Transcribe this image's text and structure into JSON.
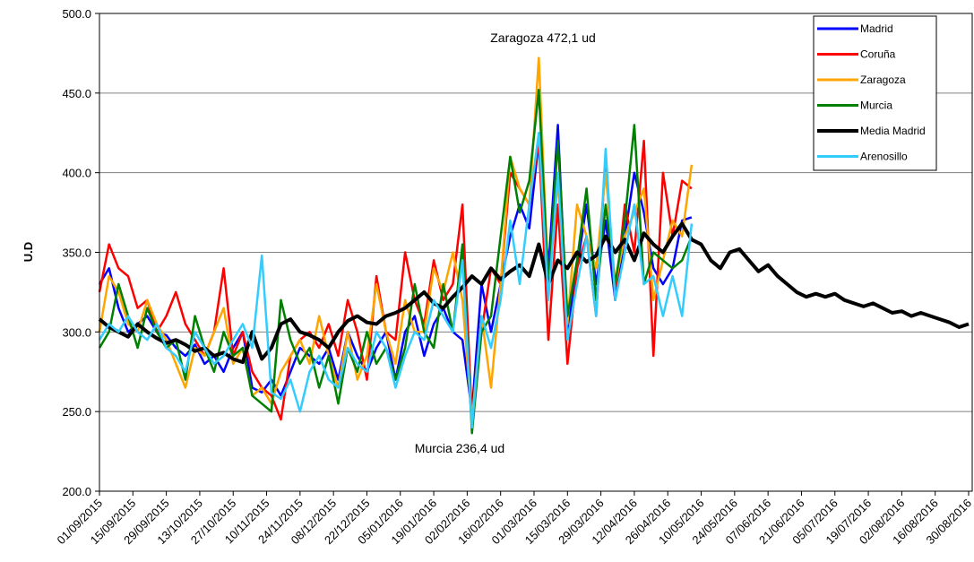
{
  "chart_data": {
    "type": "line",
    "ylabel": "U.D",
    "grid": true,
    "legend": "upper right",
    "annotations": [
      "Zaragoza 472,1 ud",
      "Murcia 236,4 ud"
    ],
    "x": [
      "01/09/2015",
      "05/09/2015",
      "09/09/2015",
      "13/09/2015",
      "17/09/2015",
      "21/09/2015",
      "25/09/2015",
      "29/09/2015",
      "03/10/2015",
      "07/10/2015",
      "11/10/2015",
      "15/10/2015",
      "19/10/2015",
      "23/10/2015",
      "27/10/2015",
      "31/10/2015",
      "04/11/2015",
      "08/11/2015",
      "12/11/2015",
      "16/11/2015",
      "20/11/2015",
      "24/11/2015",
      "28/11/2015",
      "02/12/2015",
      "06/12/2015",
      "10/12/2015",
      "14/12/2015",
      "18/12/2015",
      "22/12/2015",
      "26/12/2015",
      "30/12/2015",
      "03/01/2016",
      "07/01/2016",
      "11/01/2016",
      "15/01/2016",
      "19/01/2016",
      "23/01/2016",
      "27/01/2016",
      "31/01/2016",
      "04/02/2016",
      "08/02/2016",
      "12/02/2016",
      "16/02/2016",
      "20/02/2016",
      "24/02/2016",
      "28/02/2016",
      "03/03/2016",
      "07/03/2016",
      "11/03/2016",
      "15/03/2016",
      "19/03/2016",
      "23/03/2016",
      "27/03/2016",
      "31/03/2016",
      "04/04/2016",
      "08/04/2016",
      "12/04/2016",
      "16/04/2016",
      "20/04/2016",
      "24/04/2016",
      "28/04/2016",
      "02/05/2016",
      "06/05/2016",
      "10/05/2016",
      "14/05/2016",
      "18/05/2016",
      "22/05/2016",
      "26/05/2016",
      "30/05/2016",
      "03/06/2016",
      "07/06/2016",
      "11/06/2016",
      "15/06/2016",
      "19/06/2016",
      "23/06/2016",
      "27/06/2016",
      "01/07/2016",
      "05/07/2016",
      "09/07/2016",
      "13/07/2016",
      "17/07/2016",
      "21/07/2016",
      "25/07/2016",
      "29/07/2016",
      "02/08/2016",
      "06/08/2016",
      "10/08/2016",
      "14/08/2016",
      "18/08/2016",
      "22/08/2016",
      "26/08/2016",
      "30/08/2016"
    ],
    "xlim": [
      "01/09/2015",
      "30/08/2016"
    ],
    "xticks": [
      "01/09/2015",
      "15/09/2015",
      "29/09/2015",
      "13/10/2015",
      "27/10/2015",
      "10/11/2015",
      "24/11/2015",
      "08/12/2015",
      "22/12/2015",
      "05/01/2016",
      "19/01/2016",
      "02/02/2016",
      "16/02/2016",
      "01/03/2016",
      "15/03/2016",
      "29/03/2016",
      "12/04/2016",
      "26/04/2016",
      "10/05/2016",
      "24/05/2016",
      "07/06/2016",
      "21/06/2016",
      "05/07/2016",
      "19/07/2016",
      "02/08/2016",
      "16/08/2016",
      "30/08/2016"
    ],
    "ylim": [
      200,
      500
    ],
    "yticks": [
      {
        "value": 200,
        "label": "200.0"
      },
      {
        "value": 250,
        "label": "250.0"
      },
      {
        "value": 300,
        "label": "300.0"
      },
      {
        "value": 350,
        "label": "350.0"
      },
      {
        "value": 400,
        "label": "400.0"
      },
      {
        "value": 450,
        "label": "450.0"
      },
      {
        "value": 500,
        "label": "500.0"
      }
    ],
    "series": [
      {
        "name": "Madrid",
        "color": "#0000ff",
        "values": [
          330,
          340,
          315,
          300,
          305,
          310,
          300,
          298,
          290,
          285,
          292,
          280,
          285,
          275,
          290,
          300,
          265,
          262,
          270,
          260,
          275,
          290,
          285,
          280,
          290,
          270,
          300,
          285,
          275,
          290,
          300,
          270,
          300,
          310,
          285,
          305,
          315,
          300,
          295,
          250,
          330,
          300,
          330,
          360,
          380,
          365,
          420,
          340,
          430,
          300,
          340,
          380,
          330,
          370,
          320,
          360,
          400,
          375,
          340,
          330,
          340,
          370,
          372,
          null,
          null,
          null,
          null,
          null,
          null,
          null,
          null,
          null,
          null,
          null,
          null,
          null,
          null,
          null,
          null,
          null,
          null,
          null,
          null,
          null,
          null,
          null,
          null,
          null,
          null,
          null,
          null,
          null
        ]
      },
      {
        "name": "Coruña",
        "color": "#ff0000",
        "values": [
          325,
          355,
          340,
          335,
          315,
          320,
          300,
          310,
          325,
          305,
          295,
          285,
          300,
          340,
          285,
          300,
          275,
          265,
          260,
          245,
          285,
          295,
          300,
          290,
          305,
          285,
          320,
          300,
          270,
          335,
          300,
          295,
          350,
          320,
          305,
          345,
          320,
          330,
          380,
          245,
          300,
          340,
          330,
          400,
          390,
          380,
          420,
          295,
          380,
          280,
          340,
          360,
          310,
          410,
          320,
          380,
          350,
          420,
          285,
          400,
          360,
          395,
          390,
          null,
          null,
          null,
          null,
          null,
          null,
          null,
          null,
          null,
          null,
          null,
          null,
          null,
          null,
          null,
          null,
          null,
          null,
          null,
          null,
          null,
          null,
          null,
          null,
          null,
          null,
          null,
          null,
          null
        ]
      },
      {
        "name": "Zaragoza",
        "color": "#ffa500",
        "values": [
          300,
          335,
          325,
          305,
          300,
          320,
          305,
          295,
          280,
          265,
          290,
          285,
          300,
          315,
          280,
          290,
          260,
          265,
          255,
          275,
          285,
          295,
          280,
          310,
          285,
          265,
          300,
          270,
          285,
          330,
          300,
          280,
          320,
          300,
          300,
          340,
          325,
          350,
          320,
          245,
          310,
          265,
          330,
          410,
          390,
          380,
          472.1,
          330,
          395,
          305,
          380,
          360,
          340,
          400,
          330,
          360,
          375,
          390,
          320,
          345,
          370,
          360,
          405,
          null,
          null,
          null,
          null,
          null,
          null,
          null,
          null,
          null,
          null,
          null,
          null,
          null,
          null,
          null,
          null,
          null,
          null,
          null,
          null,
          null,
          null,
          null,
          null,
          null,
          null,
          null,
          null,
          null
        ]
      },
      {
        "name": "Murcia",
        "color": "#008000",
        "values": [
          290,
          300,
          330,
          310,
          290,
          315,
          300,
          290,
          295,
          270,
          310,
          290,
          275,
          300,
          285,
          290,
          260,
          255,
          250,
          320,
          295,
          280,
          290,
          265,
          285,
          255,
          290,
          275,
          300,
          280,
          290,
          270,
          290,
          330,
          300,
          290,
          330,
          300,
          355,
          236.4,
          300,
          310,
          360,
          410,
          375,
          395,
          452,
          330,
          420,
          310,
          345,
          390,
          320,
          380,
          330,
          370,
          430,
          330,
          350,
          345,
          340,
          345,
          360,
          null,
          null,
          null,
          null,
          null,
          null,
          null,
          null,
          null,
          null,
          null,
          null,
          null,
          null,
          null,
          null,
          null,
          null,
          null,
          null,
          null,
          null,
          null,
          null,
          null,
          null,
          null,
          null,
          null
        ]
      },
      {
        "name": "Media Madrid",
        "color": "#000000",
        "values": [
          308,
          303,
          300,
          297,
          305,
          300,
          296,
          293,
          295,
          292,
          288,
          290,
          285,
          287,
          283,
          281,
          300,
          283,
          290,
          305,
          308,
          300,
          298,
          295,
          290,
          300,
          307,
          310,
          306,
          305,
          310,
          312,
          315,
          320,
          325,
          318,
          315,
          322,
          328,
          335,
          330,
          340,
          333,
          338,
          342,
          335,
          355,
          330,
          345,
          340,
          350,
          344,
          348,
          360,
          350,
          358,
          345,
          362,
          355,
          350,
          360,
          368,
          358,
          355,
          345,
          340,
          350,
          352,
          345,
          338,
          342,
          335,
          330,
          325,
          322,
          324,
          322,
          324,
          320,
          318,
          316,
          318,
          315,
          312,
          313,
          310,
          312,
          310,
          308,
          306,
          303,
          305
        ]
      },
      {
        "name": "Arenosillo",
        "color": "#33ccff",
        "values": [
          295,
          305,
          300,
          310,
          300,
          295,
          305,
          290,
          285,
          275,
          300,
          290,
          280,
          285,
          295,
          305,
          290,
          348,
          262,
          258,
          270,
          250,
          275,
          285,
          270,
          265,
          290,
          280,
          275,
          300,
          290,
          265,
          285,
          300,
          295,
          320,
          310,
          300,
          345,
          240,
          310,
          290,
          320,
          370,
          330,
          380,
          425,
          320,
          400,
          295,
          330,
          360,
          310,
          415,
          320,
          350,
          380,
          330,
          335,
          310,
          335,
          310,
          368,
          null,
          null,
          null,
          null,
          null,
          null,
          null,
          null,
          null,
          null,
          null,
          null,
          null,
          null,
          null,
          null,
          null,
          null,
          null,
          null,
          null,
          null,
          null,
          null,
          null,
          null,
          null,
          null,
          null
        ]
      }
    ]
  }
}
